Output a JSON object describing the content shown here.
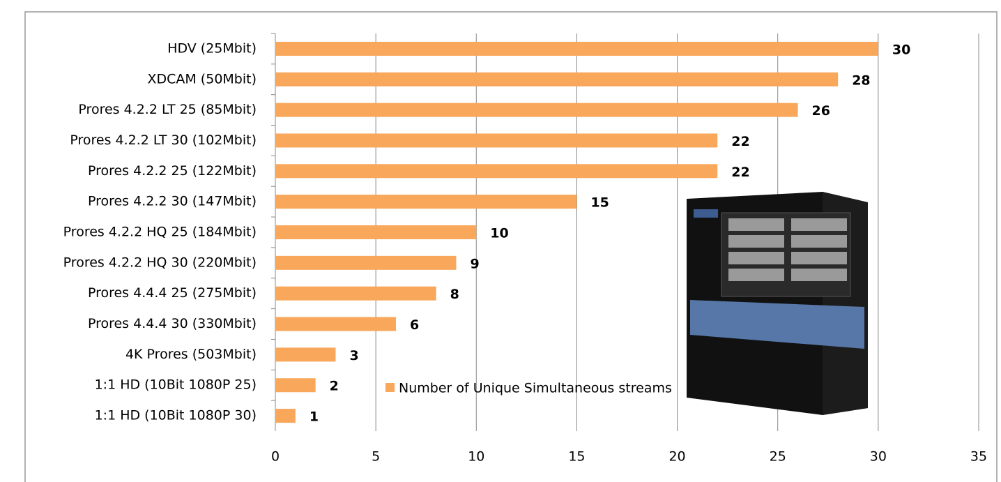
{
  "chart_data": {
    "type": "bar",
    "orientation": "horizontal",
    "categories": [
      "HDV (25Mbit)",
      "XDCAM (50Mbit)",
      "Prores 4.2.2 LT 25 (85Mbit)",
      "Prores 4.2.2 LT 30 (102Mbit)",
      "Prores 4.2.2 25 (122Mbit)",
      "Prores 4.2.2 30 (147Mbit)",
      "Prores 4.2.2 HQ 25 (184Mbit)",
      "Prores 4.2.2 HQ 30 (220Mbit)",
      "Prores 4.4.4 25 (275Mbit)",
      "Prores 4.4.4 30 (330Mbit)",
      "4K Prores (503Mbit)",
      "1:1 HD (10Bit 1080P 25)",
      "1:1 HD (10Bit 1080P 30)"
    ],
    "series": [
      {
        "name": "Number of Unique Simultaneous streams",
        "color": "#f8a75b",
        "values": [
          30,
          28,
          26,
          22,
          22,
          15,
          10,
          9,
          8,
          6,
          3,
          2,
          1
        ]
      }
    ],
    "xlim": [
      0,
      35
    ],
    "xticks": [
      0,
      5,
      10,
      15,
      20,
      25,
      30,
      35
    ],
    "grid": true
  }
}
